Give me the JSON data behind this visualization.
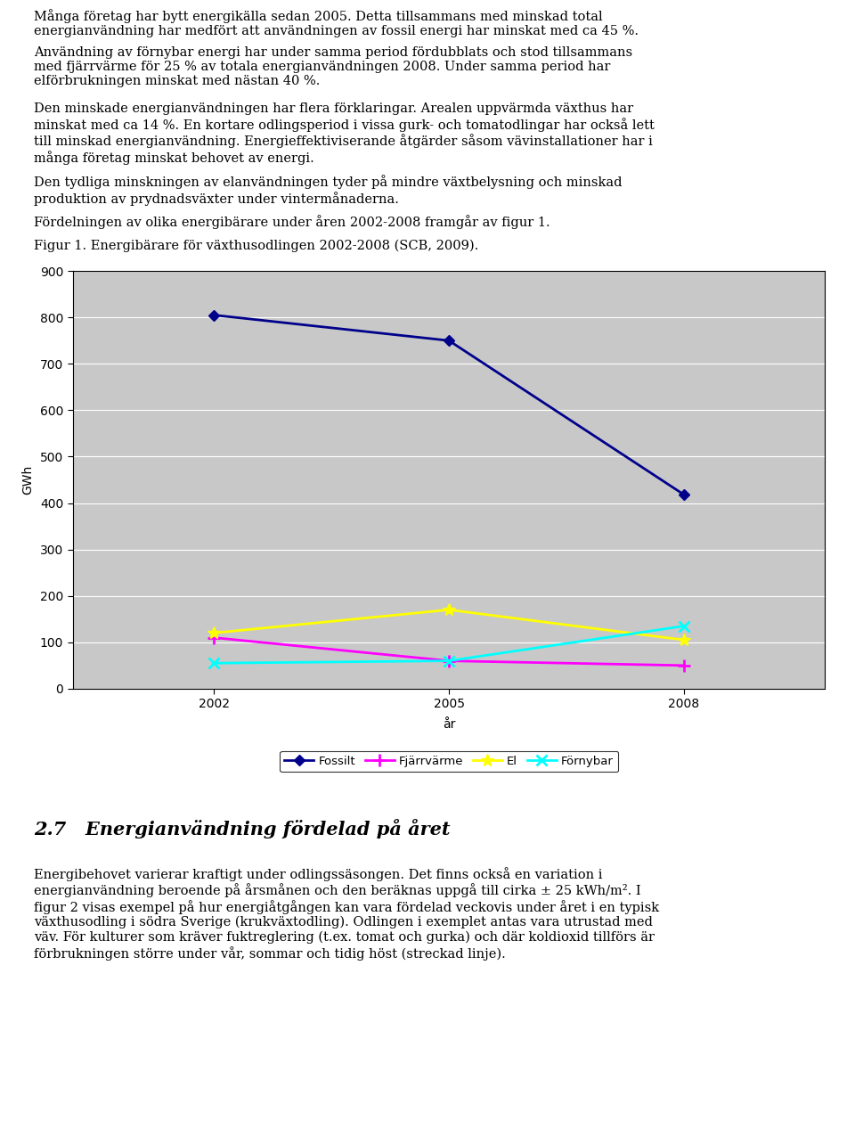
{
  "years": [
    2002,
    2005,
    2008
  ],
  "fossilt": [
    805,
    750,
    418
  ],
  "fjarrvarne": [
    110,
    60,
    50
  ],
  "el": [
    120,
    170,
    105
  ],
  "fornybar": [
    55,
    60,
    135
  ],
  "fossilt_color": "#00008B",
  "fjarrvarne_color": "#FF00FF",
  "el_color": "#FFFF00",
  "fornybar_color": "#00FFFF",
  "ylabel": "GWh",
  "xlabel": "år",
  "ylim": [
    0,
    900
  ],
  "yticks": [
    0,
    100,
    200,
    300,
    400,
    500,
    600,
    700,
    800,
    900
  ],
  "xticks": [
    2002,
    2005,
    2008
  ],
  "chart_bg": "#C8C8C8",
  "fig_bg": "#FFFFFF",
  "legend_labels": [
    "Fossilt",
    "Fjärrvärme",
    "El",
    "Förnybar"
  ],
  "marker_size": 6,
  "para1": "Många företag har bytt energikälla sedan 2005. Detta tillsammans med minskad total energianvändning har medfört att användningen av fossil energi har minskat med ca 45 %.",
  "para2": "Användning av förnybar energi har under samma period fördubblats och stod tillsammans med fjärrvärme för 25 % av totala energianvändningen 2008. Under samma period har elförbrukningen minskat med nästan 40 %.",
  "para3": "Den minskade energianvändningen har flera förklaringar. Arealen uppvärmda växthus har minskat med ca 14 %. En kortare odlingsperiod i vissa gurk- och tomatodlingar har också lett till minskad energianvändning. Energieffektiviserande åtgärder såsom vävinstallationer har i många företag minskat behovet av energi.",
  "para4": "Den tydliga minskningen av elanvändningen tyder på mindre växtbelysning och minskad produktion av prydnadsväxter under vintermånaderna.",
  "para5": "Fördelningen av olika energibärare under åren 2002-2008 framgår av figur 1.",
  "figcaption": "Figur 1. Energibärare för växthusodlingen 2002-2008 (SCB, 2009).",
  "section_header": "2.7 Energianvändning fördelad på året",
  "bottom_para": "Energibehovet varierar kraftigt under odlingssäsongen. Det finns också en variation i energianvändning beroende på årsmånen och den beräknas uppgå till cirka ± 25 kWh/m². I figur 2 visas exempel på hur energiåtgången kan vara fördelad veckovis under året i en typisk växthusodling i södra Sverige (krukväxtodling). Odlingen i exemplet antas vara utrustad med väv. För kulturer som kräver fuktreglering (t.ex. tomat och gurka) och där koldioxid till förs är förbrukningen större under vår, sommar och tidig höst (streckad linje)."
}
